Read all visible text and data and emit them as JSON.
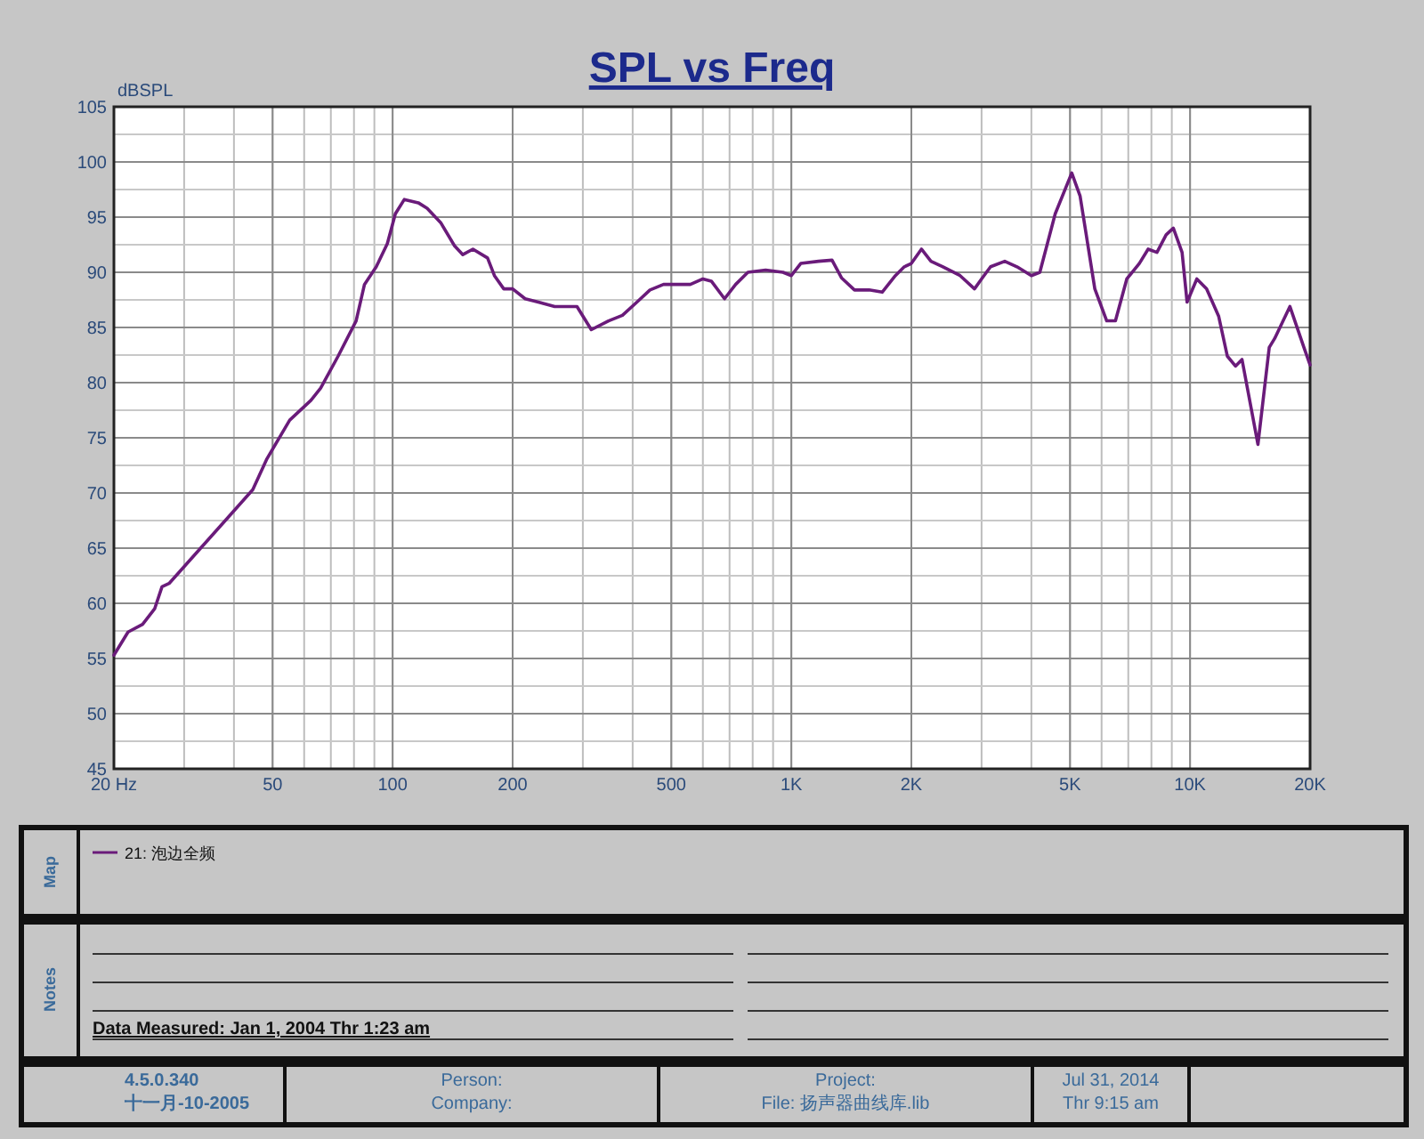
{
  "chart_data": {
    "type": "line",
    "title": "SPL vs Freq",
    "ylabel": "dBSPL",
    "log": "x",
    "grid": true,
    "legend": "bottom",
    "xlim": [
      20,
      20000
    ],
    "ylim": [
      45,
      105
    ],
    "xticks": [
      {
        "value": 20,
        "label": "20 Hz"
      },
      50,
      100,
      200,
      500,
      {
        "value": 1000,
        "label": "1K"
      },
      {
        "value": 2000,
        "label": "2K"
      },
      {
        "value": 5000,
        "label": "5K"
      },
      {
        "value": 10000,
        "label": "10K"
      },
      {
        "value": 20000,
        "label": "20K"
      }
    ],
    "yticks": [
      45,
      50,
      55,
      60,
      65,
      70,
      75,
      80,
      85,
      90,
      95,
      100,
      105
    ],
    "series": [
      {
        "name": "21: 泡边全频",
        "color": "#6a1b7a",
        "x": [
          20,
          21.7,
          23.6,
          25.3,
          26.4,
          27.5,
          44.6,
          48.4,
          55.2,
          62.4,
          66,
          73,
          81,
          85,
          91,
          97,
          101.6,
          107,
          116,
          122,
          132,
          143,
          150,
          159,
          173,
          180,
          190,
          200,
          215,
          232,
          255,
          290,
          315,
          348,
          377,
          410,
          442,
          478,
          558,
          600,
          630,
          680,
          725,
          778,
          862,
          953,
          1000,
          1056,
          1170,
          1265,
          1336,
          1440,
          1567,
          1690,
          1824,
          1920,
          2000,
          2120,
          2240,
          2400,
          2650,
          2880,
          3000,
          3160,
          3430,
          3680,
          4000,
          4200,
          4590,
          5050,
          5300,
          5770,
          6180,
          6500,
          6940,
          7460,
          7850,
          8260,
          8710,
          9080,
          9550,
          9830,
          10400,
          11000,
          11800,
          12400,
          13000,
          13500,
          14800,
          15800,
          16300,
          17800,
          19300,
          20000
        ],
        "values": [
          55.3,
          57.4,
          58.1,
          59.5,
          61.5,
          61.8,
          70.3,
          73.1,
          76.6,
          78.4,
          79.5,
          82.4,
          85.6,
          88.9,
          90.5,
          92.6,
          95.3,
          96.6,
          96.3,
          95.8,
          94.5,
          92.4,
          91.6,
          92.1,
          91.3,
          89.7,
          88.5,
          88.5,
          87.6,
          87.3,
          86.9,
          86.9,
          84.8,
          85.6,
          86.1,
          87.3,
          88.4,
          88.9,
          88.9,
          89.4,
          89.2,
          87.6,
          88.9,
          90,
          90.2,
          90,
          89.7,
          90.8,
          91,
          91.1,
          89.5,
          88.4,
          88.4,
          88.2,
          89.7,
          90.5,
          90.8,
          92.1,
          91,
          90.5,
          89.7,
          88.5,
          89.4,
          90.5,
          91,
          90.5,
          89.7,
          90,
          95.3,
          99,
          96.9,
          88.5,
          85.6,
          85.6,
          89.4,
          90.8,
          92.1,
          91.8,
          93.4,
          94,
          91.8,
          87.3,
          89.4,
          88.5,
          86,
          82.4,
          81.5,
          82.1,
          74.4,
          83.2,
          84,
          86.9,
          83.2,
          81.6
        ]
      }
    ],
    "annotations": [
      "Map",
      "Notes",
      "Data Measured: Jan 1, 2004 Thr 1:23 am",
      "4.5.0.340",
      "十一月-10-2005",
      "Person:",
      "Company:",
      "Project:",
      "File: 扬声器曲线库.lib",
      "Jul 31, 2014",
      "Thr 9:15 am"
    ]
  }
}
